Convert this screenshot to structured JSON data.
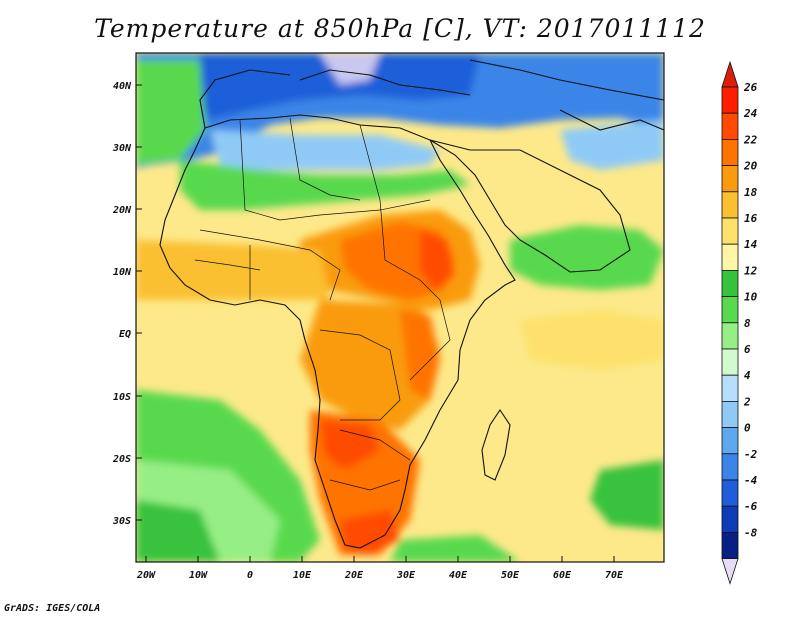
{
  "title": "Temperature at 850hPa [C], VT: 2017011112",
  "credit": "GrADS: IGES/COLA",
  "map": {
    "lat_labels": [
      "40N",
      "30N",
      "20N",
      "10N",
      "EQ",
      "10S",
      "20S",
      "30S"
    ],
    "lon_labels": [
      "20W",
      "10W",
      "0",
      "10E",
      "20E",
      "30E",
      "40E",
      "50E",
      "60E",
      "70E"
    ]
  },
  "colorbar": {
    "labels": [
      "26",
      "24",
      "22",
      "20",
      "18",
      "16",
      "14",
      "12",
      "10",
      "8",
      "6",
      "4",
      "2",
      "0",
      "-2",
      "-4",
      "-6",
      "-8"
    ],
    "colors": [
      "#ff1e00",
      "#ff4b00",
      "#ff7300",
      "#f99b0c",
      "#fac030",
      "#fde16c",
      "#fff6a6",
      "#37c23c",
      "#59d94d",
      "#96ef85",
      "#d3f9cf",
      "#b8dff9",
      "#8fcaf7",
      "#5fa8f0",
      "#3b85e8",
      "#1f5ed8",
      "#0e3bb6",
      "#0a1f86",
      "#e6dcf8",
      "#db1f0e"
    ]
  }
}
